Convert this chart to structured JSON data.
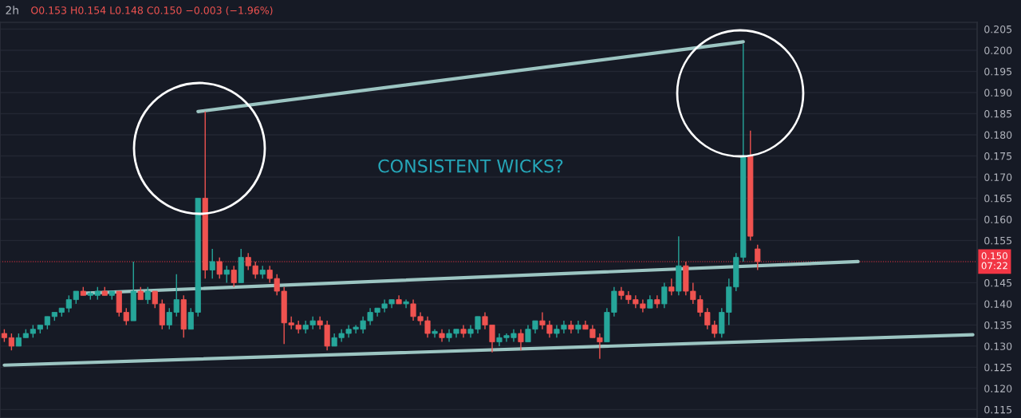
{
  "chart_data": {
    "type": "candlestick",
    "title": "2h",
    "annotations": [
      "O0.153 H0.154 L0.148 C0.150 −0.003 (−1.96%)",
      "CONSISTENT WICKS?"
    ],
    "categories": [
      null,
      null,
      null,
      null,
      null,
      null,
      null,
      null,
      null,
      null,
      null,
      null,
      null,
      null,
      null,
      null,
      null,
      null,
      null,
      null,
      null,
      null,
      null,
      null,
      null,
      null,
      null,
      null,
      null,
      null,
      null,
      null,
      null,
      null,
      null,
      null,
      null,
      null,
      null,
      null,
      null,
      null,
      null,
      null,
      null,
      null,
      null,
      null,
      null,
      null,
      null,
      null,
      null,
      null,
      null,
      null,
      null,
      null,
      null,
      null,
      null,
      null,
      null,
      null,
      null,
      null,
      null,
      null,
      null,
      null,
      null,
      null,
      null,
      null,
      null,
      null,
      null,
      null,
      null,
      null,
      null,
      null,
      null,
      null,
      null,
      null,
      null,
      null,
      null,
      null,
      null,
      null,
      null,
      null,
      null,
      null,
      null,
      null,
      null,
      null,
      null,
      null,
      null,
      null,
      null,
      null,
      null,
      null,
      null,
      null,
      null,
      null,
      null,
      null,
      null,
      null,
      null,
      null,
      null,
      null,
      null,
      null,
      null,
      null,
      null,
      null,
      null,
      null,
      null,
      null,
      null,
      null,
      null,
      null,
      null,
      null
    ],
    "ohlc": [
      [
        0.133,
        0.134,
        0.131,
        0.132
      ],
      [
        0.132,
        0.133,
        0.129,
        0.13
      ],
      [
        0.13,
        0.133,
        0.13,
        0.132
      ],
      [
        0.132,
        0.134,
        0.132,
        0.133
      ],
      [
        0.133,
        0.135,
        0.132,
        0.134
      ],
      [
        0.134,
        0.135,
        0.133,
        0.135
      ],
      [
        0.135,
        0.137,
        0.134,
        0.137
      ],
      [
        0.137,
        0.138,
        0.136,
        0.138
      ],
      [
        0.138,
        0.139,
        0.137,
        0.139
      ],
      [
        0.139,
        0.142,
        0.138,
        0.141
      ],
      [
        0.141,
        0.143,
        0.14,
        0.143
      ],
      [
        0.143,
        0.144,
        0.142,
        0.142
      ],
      [
        0.142,
        0.143,
        0.141,
        0.1425
      ],
      [
        0.142,
        0.144,
        0.141,
        0.143
      ],
      [
        0.143,
        0.144,
        0.142,
        0.142
      ],
      [
        0.142,
        0.143,
        0.141,
        0.143
      ],
      [
        0.143,
        0.143,
        0.137,
        0.138
      ],
      [
        0.138,
        0.139,
        0.135,
        0.136
      ],
      [
        0.136,
        0.15,
        0.136,
        0.143
      ],
      [
        0.143,
        0.144,
        0.141,
        0.141
      ],
      [
        0.141,
        0.144,
        0.14,
        0.143
      ],
      [
        0.143,
        0.143,
        0.139,
        0.14
      ],
      [
        0.14,
        0.141,
        0.134,
        0.135
      ],
      [
        0.135,
        0.139,
        0.134,
        0.138
      ],
      [
        0.138,
        0.147,
        0.137,
        0.141
      ],
      [
        0.141,
        0.142,
        0.132,
        0.134
      ],
      [
        0.134,
        0.139,
        0.134,
        0.138
      ],
      [
        0.138,
        0.165,
        0.137,
        0.165
      ],
      [
        0.165,
        0.1855,
        0.146,
        0.148
      ],
      [
        0.148,
        0.153,
        0.146,
        0.15
      ],
      [
        0.15,
        0.151,
        0.146,
        0.147
      ],
      [
        0.147,
        0.149,
        0.145,
        0.148
      ],
      [
        0.148,
        0.149,
        0.144,
        0.145
      ],
      [
        0.145,
        0.153,
        0.145,
        0.151
      ],
      [
        0.151,
        0.152,
        0.148,
        0.149
      ],
      [
        0.149,
        0.15,
        0.146,
        0.147
      ],
      [
        0.147,
        0.149,
        0.146,
        0.148
      ],
      [
        0.148,
        0.149,
        0.145,
        0.146
      ],
      [
        0.146,
        0.147,
        0.142,
        0.143
      ],
      [
        0.143,
        0.144,
        0.1305,
        0.1355
      ],
      [
        0.1355,
        0.137,
        0.134,
        0.135
      ],
      [
        0.135,
        0.136,
        0.133,
        0.134
      ],
      [
        0.134,
        0.136,
        0.133,
        0.135
      ],
      [
        0.135,
        0.137,
        0.134,
        0.136
      ],
      [
        0.136,
        0.137,
        0.134,
        0.135
      ],
      [
        0.135,
        0.136,
        0.129,
        0.13
      ],
      [
        0.13,
        0.133,
        0.13,
        0.132
      ],
      [
        0.132,
        0.134,
        0.131,
        0.133
      ],
      [
        0.133,
        0.135,
        0.132,
        0.134
      ],
      [
        0.134,
        0.135,
        0.133,
        0.1345
      ],
      [
        0.134,
        0.137,
        0.133,
        0.136
      ],
      [
        0.136,
        0.139,
        0.135,
        0.138
      ],
      [
        0.138,
        0.139,
        0.137,
        0.139
      ],
      [
        0.139,
        0.141,
        0.138,
        0.14
      ],
      [
        0.14,
        0.141,
        0.139,
        0.141
      ],
      [
        0.141,
        0.142,
        0.14,
        0.14
      ],
      [
        0.14,
        0.141,
        0.139,
        0.1405
      ],
      [
        0.14,
        0.141,
        0.136,
        0.137
      ],
      [
        0.137,
        0.138,
        0.135,
        0.136
      ],
      [
        0.136,
        0.137,
        0.132,
        0.133
      ],
      [
        0.133,
        0.134,
        0.132,
        0.1335
      ],
      [
        0.133,
        0.134,
        0.131,
        0.132
      ],
      [
        0.132,
        0.134,
        0.131,
        0.133
      ],
      [
        0.133,
        0.134,
        0.132,
        0.134
      ],
      [
        0.134,
        0.135,
        0.132,
        0.133
      ],
      [
        0.133,
        0.135,
        0.132,
        0.134
      ],
      [
        0.134,
        0.137,
        0.133,
        0.137
      ],
      [
        0.137,
        0.138,
        0.134,
        0.135
      ],
      [
        0.135,
        0.135,
        0.1285,
        0.131
      ],
      [
        0.131,
        0.133,
        0.13,
        0.132
      ],
      [
        0.132,
        0.133,
        0.131,
        0.1325
      ],
      [
        0.132,
        0.134,
        0.131,
        0.133
      ],
      [
        0.133,
        0.134,
        0.129,
        0.131
      ],
      [
        0.131,
        0.135,
        0.131,
        0.134
      ],
      [
        0.134,
        0.136,
        0.133,
        0.136
      ],
      [
        0.136,
        0.138,
        0.134,
        0.135
      ],
      [
        0.135,
        0.136,
        0.132,
        0.133
      ],
      [
        0.133,
        0.135,
        0.132,
        0.134
      ],
      [
        0.134,
        0.136,
        0.133,
        0.135
      ],
      [
        0.135,
        0.136,
        0.133,
        0.134
      ],
      [
        0.134,
        0.136,
        0.133,
        0.135
      ],
      [
        0.135,
        0.136,
        0.134,
        0.134
      ],
      [
        0.134,
        0.135,
        0.132,
        0.132
      ],
      [
        0.132,
        0.133,
        0.127,
        0.131
      ],
      [
        0.131,
        0.139,
        0.131,
        0.138
      ],
      [
        0.138,
        0.144,
        0.137,
        0.143
      ],
      [
        0.143,
        0.144,
        0.141,
        0.142
      ],
      [
        0.142,
        0.143,
        0.14,
        0.141
      ],
      [
        0.141,
        0.142,
        0.139,
        0.14
      ],
      [
        0.14,
        0.141,
        0.138,
        0.139
      ],
      [
        0.139,
        0.142,
        0.139,
        0.141
      ],
      [
        0.141,
        0.142,
        0.139,
        0.14
      ],
      [
        0.14,
        0.145,
        0.139,
        0.144
      ],
      [
        0.144,
        0.146,
        0.142,
        0.143
      ],
      [
        0.143,
        0.156,
        0.142,
        0.149
      ],
      [
        0.149,
        0.15,
        0.142,
        0.143
      ],
      [
        0.143,
        0.145,
        0.14,
        0.141
      ],
      [
        0.141,
        0.142,
        0.137,
        0.138
      ],
      [
        0.138,
        0.139,
        0.134,
        0.135
      ],
      [
        0.135,
        0.136,
        0.132,
        0.133
      ],
      [
        0.133,
        0.139,
        0.132,
        0.138
      ],
      [
        0.138,
        0.146,
        0.135,
        0.144
      ],
      [
        0.144,
        0.152,
        0.143,
        0.151
      ],
      [
        0.151,
        0.2015,
        0.15,
        0.175
      ],
      [
        0.175,
        0.181,
        0.155,
        0.156
      ],
      [
        0.153,
        0.154,
        0.148,
        0.15
      ],
      null,
      null,
      null,
      null,
      null,
      null,
      null,
      null,
      null,
      null,
      null,
      null,
      null,
      null,
      null,
      null,
      null,
      null,
      null,
      null,
      null,
      null,
      null,
      null,
      null,
      null,
      null,
      null,
      null,
      null
    ],
    "series": [
      {
        "type": "line",
        "color": "#9cc5c2",
        "values": [
          null,
          null,
          null,
          null,
          null,
          null,
          null,
          null,
          null,
          null,
          null,
          null,
          null,
          null,
          null,
          null,
          null,
          null,
          null,
          null,
          null,
          null,
          null,
          null,
          null,
          null,
          null,
          0.1855,
          null,
          null,
          null,
          null,
          null,
          null,
          null,
          null,
          null,
          null,
          null,
          null,
          null,
          null,
          null,
          null,
          null,
          null,
          null,
          null,
          null,
          null,
          null,
          null,
          null,
          null,
          null,
          null,
          null,
          null,
          null,
          null,
          null,
          null,
          null,
          null,
          null,
          null,
          null,
          null,
          null,
          null,
          null,
          null,
          null,
          null,
          null,
          null,
          null,
          null,
          null,
          null,
          null,
          null,
          null,
          null,
          null,
          null,
          null,
          null,
          null,
          null,
          null,
          null,
          null,
          null,
          null,
          null,
          null,
          null,
          null,
          null,
          null,
          null,
          null,
          0.202,
          null,
          null,
          null,
          null,
          null,
          null,
          null,
          null,
          null,
          null,
          null,
          null,
          null,
          null,
          null,
          null,
          null,
          null,
          null,
          null,
          null,
          null,
          null,
          null,
          null,
          null,
          null,
          null,
          null,
          null,
          null,
          null
        ]
      },
      {
        "type": "line",
        "color": "#9cc5c2",
        "values": [
          null,
          null,
          null,
          null,
          null,
          null,
          null,
          null,
          null,
          null,
          null,
          0.1425,
          null,
          null,
          null,
          null,
          null,
          null,
          null,
          null,
          null,
          null,
          null,
          null,
          null,
          null,
          null,
          null,
          null,
          null,
          null,
          null,
          null,
          null,
          null,
          null,
          null,
          null,
          null,
          null,
          null,
          null,
          null,
          null,
          null,
          null,
          null,
          null,
          null,
          null,
          null,
          null,
          null,
          null,
          null,
          null,
          null,
          null,
          null,
          null,
          null,
          null,
          null,
          null,
          null,
          null,
          null,
          null,
          null,
          null,
          null,
          null,
          null,
          null,
          null,
          null,
          null,
          null,
          null,
          null,
          null,
          null,
          null,
          null,
          null,
          null,
          null,
          null,
          null,
          null,
          null,
          null,
          null,
          null,
          null,
          null,
          null,
          null,
          null,
          null,
          null,
          null,
          null,
          null,
          null,
          null,
          null,
          null,
          null,
          null,
          null,
          null,
          null,
          null,
          null,
          null,
          null,
          null,
          null,
          0.15,
          null,
          null,
          null,
          null,
          null,
          null,
          null,
          null,
          null,
          null,
          null,
          null,
          null,
          null,
          null,
          null
        ]
      },
      {
        "type": "line",
        "color": "#9cc5c2",
        "values": [
          0.1255,
          null,
          null,
          null,
          null,
          null,
          null,
          null,
          null,
          null,
          null,
          null,
          null,
          null,
          null,
          null,
          null,
          null,
          null,
          null,
          null,
          null,
          null,
          null,
          null,
          null,
          null,
          null,
          null,
          null,
          null,
          null,
          null,
          null,
          null,
          null,
          null,
          null,
          null,
          null,
          null,
          null,
          null,
          null,
          null,
          null,
          null,
          null,
          null,
          null,
          null,
          null,
          null,
          null,
          null,
          null,
          null,
          null,
          null,
          null,
          null,
          null,
          null,
          null,
          null,
          null,
          null,
          null,
          null,
          null,
          null,
          null,
          null,
          null,
          null,
          null,
          null,
          null,
          null,
          null,
          null,
          null,
          null,
          null,
          null,
          null,
          null,
          null,
          null,
          null,
          null,
          null,
          null,
          null,
          null,
          null,
          null,
          null,
          null,
          null,
          null,
          null,
          null,
          null,
          null,
          null,
          null,
          null,
          null,
          null,
          null,
          null,
          null,
          null,
          null,
          null,
          null,
          null,
          null,
          null,
          null,
          null,
          null,
          null,
          null,
          null,
          null,
          null,
          null,
          null,
          null,
          null,
          null,
          null,
          null,
          0.1327
        ]
      }
    ],
    "ref_lines": [
      {
        "axis": "y",
        "value": 0.15,
        "label": "0.150\n07:22",
        "color": "#f23645",
        "line_style": "dotted"
      }
    ],
    "ylim": [
      0.113,
      0.2066
    ],
    "yticks": [
      0.115,
      {
        "value": 0.12,
        "label": "0.120"
      },
      0.125,
      {
        "value": 0.13,
        "label": "0.130"
      },
      0.135,
      {
        "value": 0.14,
        "label": "0.140"
      },
      0.145,
      0.155,
      {
        "value": 0.16,
        "label": "0.160"
      },
      0.165,
      {
        "value": 0.17,
        "label": "0.170"
      },
      0.175,
      {
        "value": 0.18,
        "label": "0.180"
      },
      0.185,
      {
        "value": 0.19,
        "label": "0.190"
      },
      0.195,
      {
        "value": 0.2,
        "label": "0.200"
      },
      0.205
    ],
    "grid": "y",
    "legend": false,
    "tick_labels": "y"
  }
}
